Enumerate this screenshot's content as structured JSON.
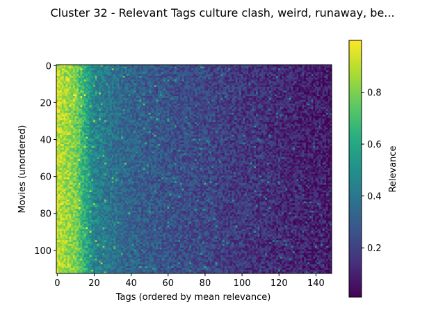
{
  "chart_data": {
    "type": "heatmap",
    "title": "Cluster 32 - Relevant Tags culture clash, weird, runaway, be...",
    "xlabel": "Tags (ordered by mean relevance)",
    "ylabel": "Movies (unordered)",
    "n_cols": 149,
    "n_rows": 113,
    "xlim": [
      0,
      149
    ],
    "ylim": [
      0,
      113
    ],
    "x_ticks": [
      "0",
      "20",
      "40",
      "60",
      "80",
      "100",
      "120",
      "140"
    ],
    "y_ticks": [
      "0",
      "20",
      "40",
      "60",
      "80",
      "100"
    ],
    "colorbar": {
      "label": "Relevance",
      "range": [
        0.01,
        1.0
      ],
      "ticks": [
        "0.2",
        "0.4",
        "0.6",
        "0.8"
      ],
      "colormap": "viridis"
    },
    "value_profile": {
      "description": "relevance decreases with tag rank",
      "col_mean_at": {
        "0": 0.9,
        "10": 0.8,
        "20": 0.45,
        "40": 0.32,
        "60": 0.26,
        "80": 0.22,
        "100": 0.17,
        "120": 0.13,
        "148": 0.08
      }
    }
  }
}
